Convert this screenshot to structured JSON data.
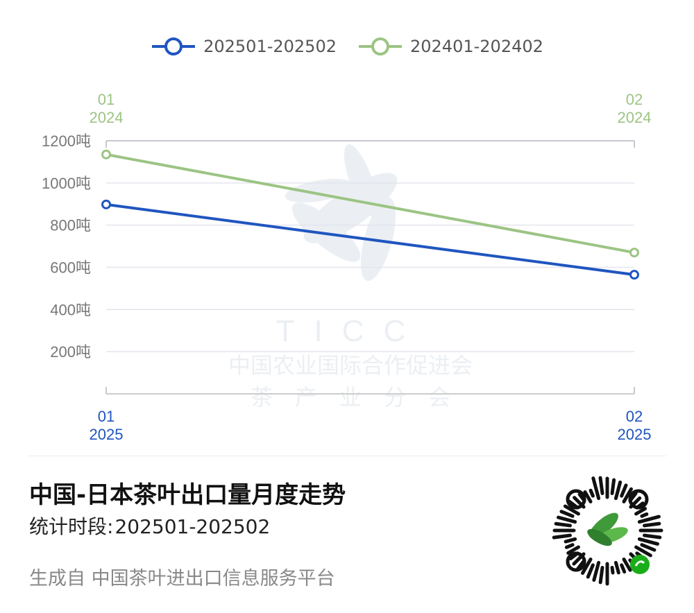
{
  "legend": [
    {
      "label": "202501-202502",
      "color": "#1f55c0"
    },
    {
      "label": "202401-202402",
      "color": "#9cc484"
    }
  ],
  "watermark": {
    "logo": "leaf-logo",
    "line1": "TICC",
    "line2": "中国农业国际合作促进会",
    "line3": "茶　产　业　分　会"
  },
  "chart_data": {
    "type": "line",
    "categories": [
      "01",
      "02"
    ],
    "x_top_labels": [
      {
        "month": "01",
        "year": "2024"
      },
      {
        "month": "02",
        "year": "2024"
      }
    ],
    "x_bottom_labels": [
      {
        "month": "01",
        "year": "2025"
      },
      {
        "month": "02",
        "year": "2025"
      }
    ],
    "y_ticks": [
      {
        "value": 200,
        "label": "200吨"
      },
      {
        "value": 400,
        "label": "400吨"
      },
      {
        "value": 600,
        "label": "600吨"
      },
      {
        "value": 800,
        "label": "800吨"
      },
      {
        "value": 1000,
        "label": "1000吨"
      },
      {
        "value": 1200,
        "label": "1200吨"
      }
    ],
    "ylim": [
      0,
      1200
    ],
    "grid": true,
    "legend_position": "top-center",
    "series": [
      {
        "name": "202501-202502",
        "color": "#1f55c0",
        "values": [
          898,
          565
        ]
      },
      {
        "name": "202401-202402",
        "color": "#9cc484",
        "values": [
          1135,
          670
        ]
      }
    ]
  },
  "footer": {
    "title": "中国-日本茶叶出口量月度走势",
    "period_label": "统计时段:",
    "period_value": "202501-202502",
    "source": "生成自 中国茶叶进出口信息服务平台",
    "qr_icon": "mini-program-qr-code"
  }
}
